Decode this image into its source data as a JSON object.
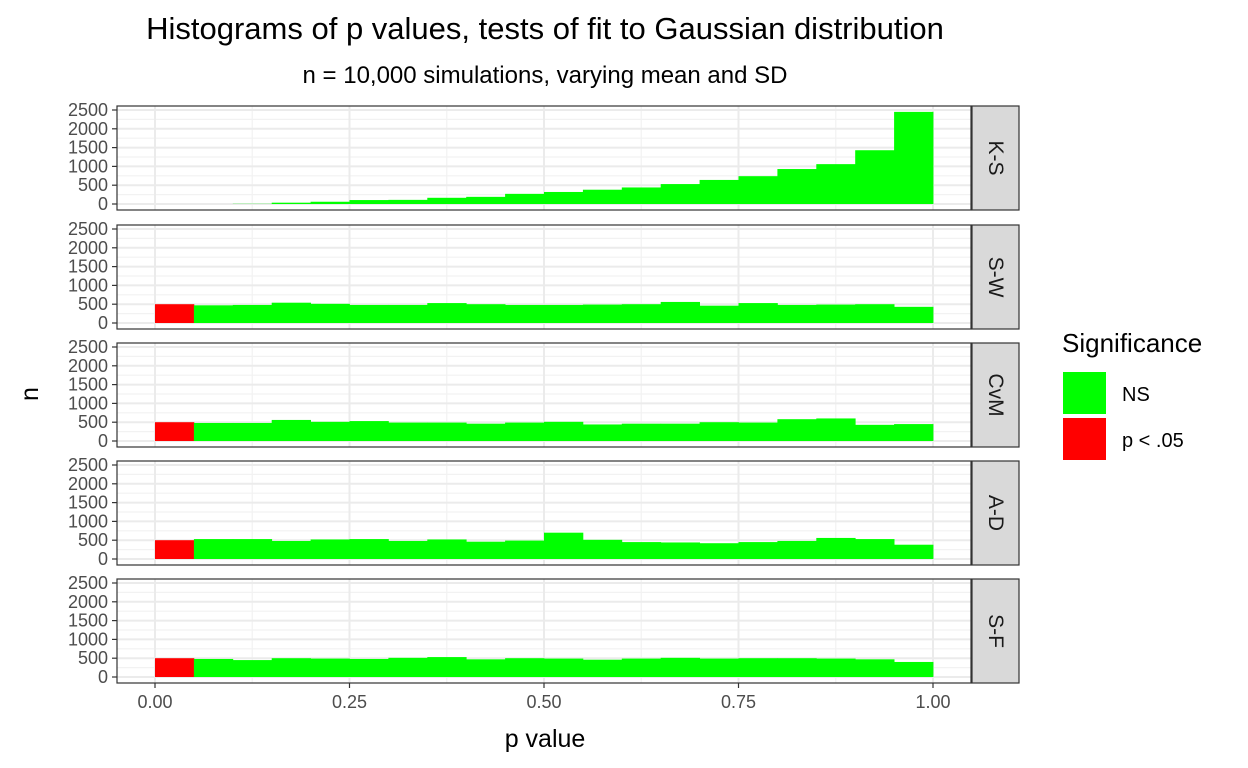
{
  "chart_data": {
    "type": "bar",
    "title": "Histograms of p values, tests of fit to Gaussian distribution",
    "subtitle": "n = 10,000 simulations, varying mean and SD",
    "xlabel": "p value",
    "ylabel": "n",
    "xlim": [
      0,
      1
    ],
    "ylim": [
      0,
      2500
    ],
    "x_ticks": [
      0,
      0.25,
      0.5,
      0.75,
      1
    ],
    "x_tick_labels": [
      "0.00",
      "0.25",
      "0.50",
      "0.75",
      "1.00"
    ],
    "y_ticks": [
      0,
      500,
      1000,
      1500,
      2000,
      2500
    ],
    "y_tick_labels": [
      "0",
      "500",
      "1000",
      "1500",
      "2000",
      "2500"
    ],
    "grid": true,
    "facet": "rows",
    "bin_width": 0.05,
    "bin_starts": [
      0,
      0.05,
      0.1,
      0.15,
      0.2,
      0.25,
      0.3,
      0.35,
      0.4,
      0.45,
      0.5,
      0.55,
      0.6,
      0.65,
      0.7,
      0.75,
      0.8,
      0.85,
      0.9,
      0.95
    ],
    "legend": {
      "title": "Significance",
      "position": "right",
      "entries": [
        {
          "label": "NS",
          "color": "#00ff00"
        },
        {
          "label": "p < .05",
          "color": "#ff0000"
        }
      ]
    },
    "panels": [
      {
        "label": "K-S",
        "counts": [
          0,
          0,
          5,
          35,
          60,
          105,
          110,
          165,
          190,
          270,
          320,
          380,
          440,
          530,
          640,
          740,
          930,
          1060,
          1430,
          2450
        ]
      },
      {
        "label": "S-W",
        "counts": [
          500,
          470,
          480,
          540,
          510,
          480,
          480,
          530,
          500,
          480,
          480,
          490,
          500,
          560,
          460,
          530,
          480,
          490,
          500,
          430
        ]
      },
      {
        "label": "CvM",
        "counts": [
          500,
          480,
          480,
          560,
          510,
          530,
          490,
          490,
          460,
          490,
          510,
          440,
          460,
          460,
          500,
          490,
          580,
          600,
          430,
          450
        ]
      },
      {
        "label": "A-D",
        "counts": [
          500,
          530,
          530,
          480,
          520,
          530,
          480,
          520,
          460,
          490,
          700,
          510,
          450,
          440,
          420,
          450,
          480,
          560,
          530,
          380
        ]
      },
      {
        "label": "S-F",
        "counts": [
          500,
          480,
          450,
          500,
          490,
          480,
          510,
          530,
          470,
          500,
          490,
          460,
          490,
          510,
          490,
          500,
          500,
          490,
          470,
          400
        ]
      }
    ]
  }
}
